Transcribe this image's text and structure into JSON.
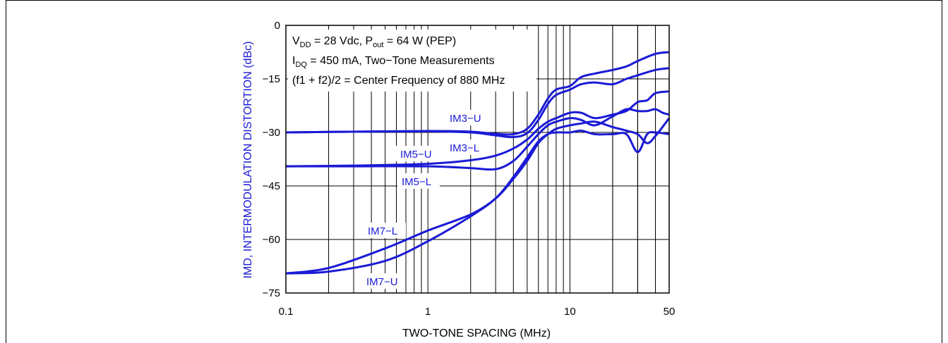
{
  "chart_data": {
    "type": "line",
    "xlabel": "TWO-TONE SPACING (MHz)",
    "ylabel": "IMD, INTERMODULATION DISTORTION (dBc)",
    "x_scale": "log",
    "xlim": [
      0.1,
      50
    ],
    "ylim": [
      -75,
      0
    ],
    "x_ticks": [
      "0.1",
      "1",
      "10",
      "50"
    ],
    "y_ticks": [
      "0",
      "−15",
      "−30",
      "−45",
      "−60",
      "−75"
    ],
    "grid": true,
    "annotation": {
      "line1_a": "V",
      "line1_a_sub": "DD",
      "line1_b": " = 28 Vdc, P",
      "line1_b_sub": "out",
      "line1_c": " = 64 W (PEP)",
      "line2_a": "I",
      "line2_a_sub": "DQ",
      "line2_b": " = 450 mA, Two−Tone Measurements",
      "line3": "(f1 + f2)/2 = Center Frequency of 880 MHz"
    },
    "series": [
      {
        "name": "IM3-U",
        "label": "IM3−U",
        "x": [
          0.1,
          0.3,
          1,
          2,
          3,
          4,
          5,
          6,
          7,
          8,
          10,
          12,
          15,
          20,
          25,
          30,
          40,
          50
        ],
        "y": [
          -30,
          -29.8,
          -29.6,
          -29.8,
          -30.4,
          -30.5,
          -29,
          -25,
          -20.5,
          -18,
          -17,
          -14.5,
          -13.5,
          -12.5,
          -11.5,
          -10,
          -8,
          -7.5
        ]
      },
      {
        "name": "IM3-L",
        "label": "IM3−L",
        "x": [
          0.1,
          0.3,
          1,
          2,
          3,
          4,
          5,
          6,
          7,
          8,
          10,
          12,
          15,
          20,
          25,
          30,
          40,
          50
        ],
        "y": [
          -30,
          -29.8,
          -29.7,
          -30,
          -30.8,
          -31.3,
          -30.2,
          -26.5,
          -22,
          -19.5,
          -18,
          -16.5,
          -16,
          -16.5,
          -15,
          -14,
          -12.5,
          -12
        ]
      },
      {
        "name": "IM5-U",
        "label": "IM5−U",
        "x": [
          0.1,
          0.3,
          1,
          2,
          3,
          4,
          5,
          6,
          7,
          8,
          10,
          12,
          15,
          20,
          25,
          30,
          35,
          40,
          50
        ],
        "y": [
          -39.5,
          -39.3,
          -38.8,
          -37.8,
          -36.5,
          -34.5,
          -32,
          -29,
          -27,
          -26,
          -24.5,
          -24.5,
          -26,
          -25,
          -24,
          -21.5,
          -21,
          -19,
          -18.5
        ]
      },
      {
        "name": "IM5-L",
        "label": "IM5−L",
        "x": [
          0.1,
          0.3,
          1,
          2,
          3,
          4,
          5,
          6,
          7,
          8,
          10,
          12,
          15,
          20,
          25,
          30,
          35,
          40,
          45,
          50
        ],
        "y": [
          -39.5,
          -39.5,
          -39.5,
          -40,
          -40.3,
          -38,
          -34,
          -30.5,
          -28,
          -27,
          -26,
          -26.5,
          -28,
          -25.5,
          -23.5,
          -24,
          -24,
          -23.5,
          -24.5,
          -25
        ]
      },
      {
        "name": "IM7-L",
        "label": "IM7−L",
        "x": [
          0.1,
          0.2,
          0.5,
          1,
          2,
          3,
          4,
          5,
          6,
          7,
          8,
          10,
          12,
          15,
          20,
          25,
          30,
          35,
          40,
          50
        ],
        "y": [
          -69.5,
          -68,
          -62.5,
          -57.5,
          -53,
          -48.5,
          -43,
          -38,
          -33,
          -30.5,
          -29,
          -28,
          -27.5,
          -27,
          -28.5,
          -29.5,
          -30.5,
          -33,
          -31,
          -26
        ]
      },
      {
        "name": "IM7-U",
        "label": "IM7−U",
        "x": [
          0.1,
          0.2,
          0.5,
          1,
          2,
          3,
          4,
          5,
          6,
          7,
          8,
          10,
          12,
          15,
          20,
          25,
          30,
          35,
          40,
          50
        ],
        "y": [
          -69.5,
          -69,
          -66,
          -60.5,
          -53.5,
          -48.5,
          -42.5,
          -37,
          -32.5,
          -30.5,
          -30,
          -30,
          -29.5,
          -30.5,
          -30.5,
          -30.5,
          -35.5,
          -30.5,
          -30,
          -30.5
        ]
      }
    ],
    "colors": {
      "series": "#1a1ad6",
      "grid": "#000000"
    }
  }
}
